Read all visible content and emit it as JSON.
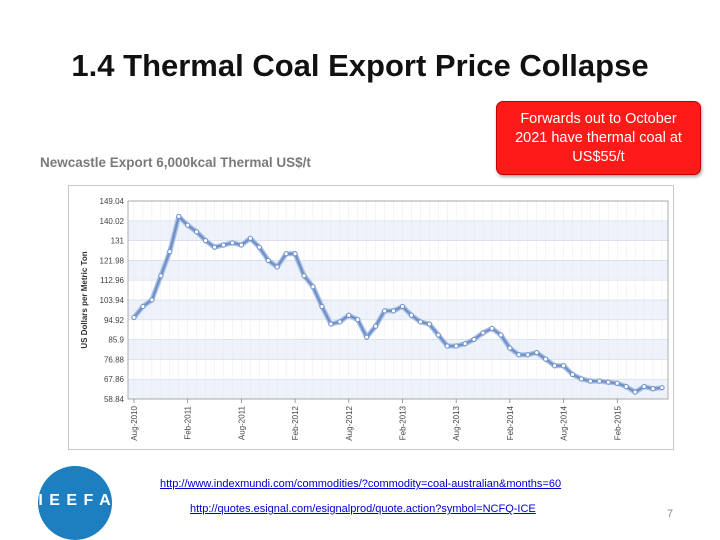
{
  "slide": {
    "title": "1.4 Thermal Coal Export Price Collapse",
    "callout": "Forwards out to October 2021 have thermal coal at US$55/t",
    "subtitle": "Newcastle Export 6,000kcal Thermal US$/t",
    "logo_text": "I E E F A",
    "link1": "http://www.indexmundi.com/commodities/?commodity=coal-australian&months=60",
    "link2": "http://quotes.esignal.com/esignalprod/quote.action?symbol=NCFQ-ICE",
    "page_number": "7"
  },
  "colors": {
    "callout_bg": "#ff1a1a",
    "line": "#6f8fc7",
    "logo": "#1d7fc0"
  },
  "chart_data": {
    "type": "line",
    "title": "Newcastle Export 6,000kcal Thermal US$/t",
    "ylabel": "US Dollars per Metric Ton",
    "xlabel": "",
    "ylim": [
      58.84,
      149.04
    ],
    "yticks": [
      "149.04",
      "140.02",
      "131",
      "121.98",
      "112.96",
      "103.94",
      "94.92",
      "85.9",
      "76.88",
      "67.86",
      "58.84"
    ],
    "xticks": [
      {
        "i": 0,
        "label": "Aug-2010"
      },
      {
        "i": 6,
        "label": "Feb-2011"
      },
      {
        "i": 12,
        "label": "Aug-2011"
      },
      {
        "i": 18,
        "label": "Feb-2012"
      },
      {
        "i": 24,
        "label": "Aug-2012"
      },
      {
        "i": 30,
        "label": "Feb-2013"
      },
      {
        "i": 36,
        "label": "Aug-2013"
      },
      {
        "i": 42,
        "label": "Feb-2014"
      },
      {
        "i": 48,
        "label": "Aug-2014"
      },
      {
        "i": 54,
        "label": "Feb-2015"
      }
    ],
    "series": [
      {
        "name": "Newcastle Export 6,000kcal Thermal",
        "values": [
          96,
          101,
          104,
          115,
          126,
          142,
          138,
          135,
          131,
          128,
          129,
          130,
          129,
          132,
          128,
          122,
          119,
          125,
          125,
          115,
          110,
          101,
          93,
          94,
          97,
          95,
          87,
          92,
          99,
          99,
          101,
          97,
          94,
          93,
          88,
          83,
          83,
          84,
          86,
          89,
          91,
          88,
          82,
          79,
          79,
          80,
          77,
          74,
          74,
          70,
          68,
          67,
          67,
          66.5,
          66,
          64.5,
          62,
          64.5,
          63.5,
          64
        ]
      }
    ]
  }
}
